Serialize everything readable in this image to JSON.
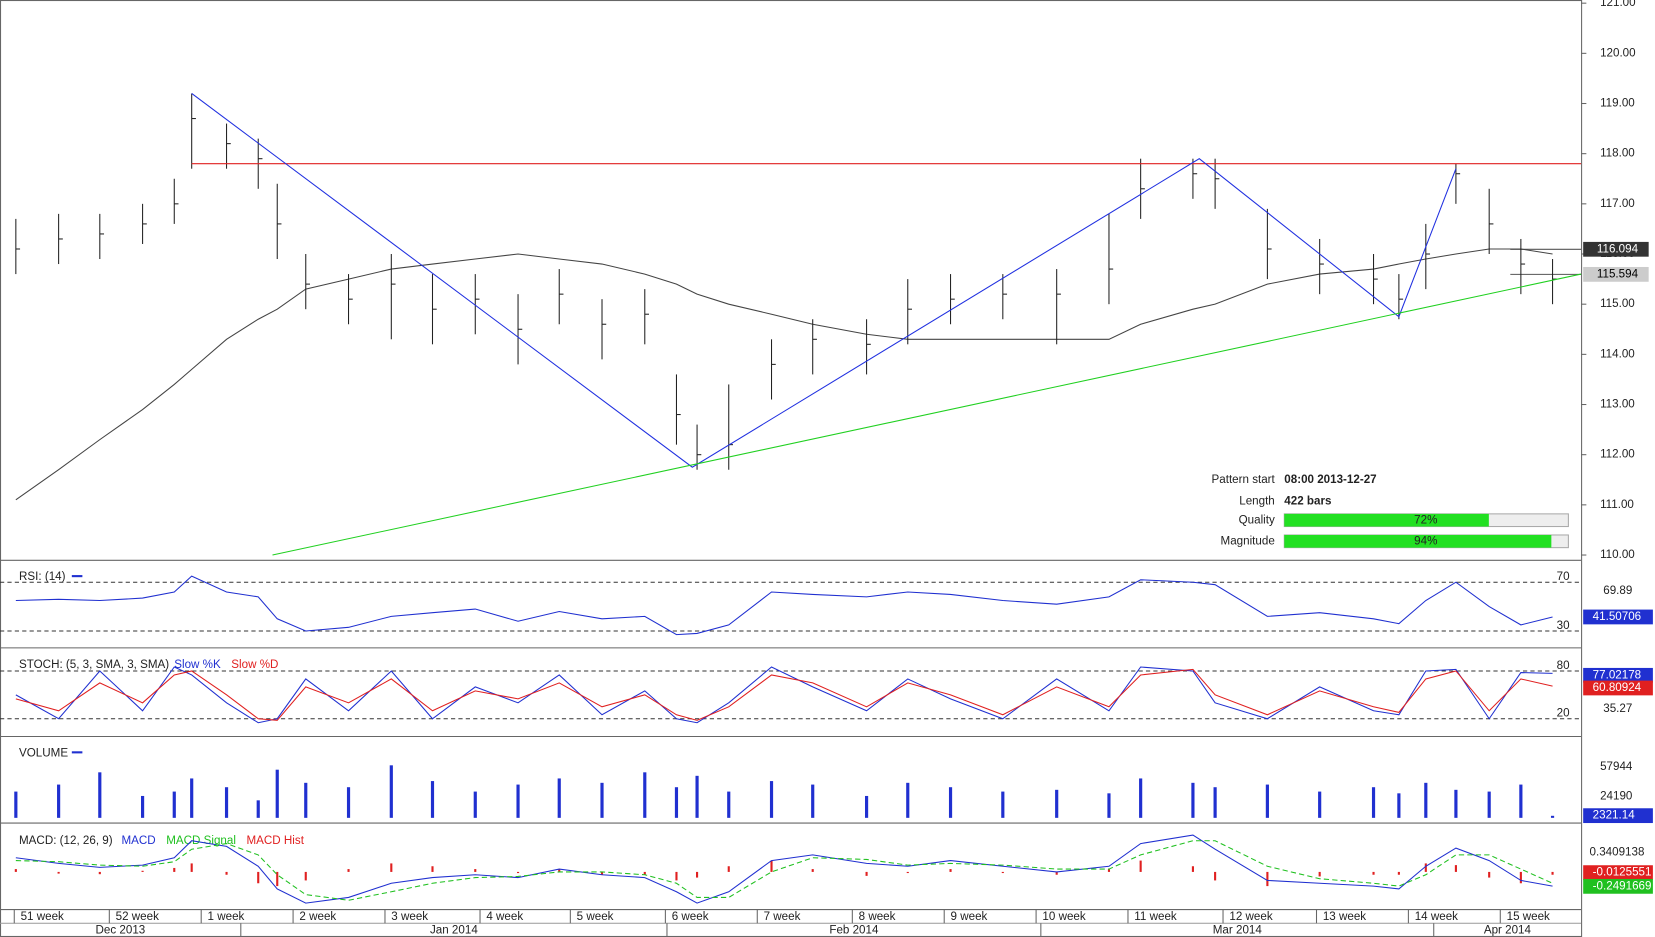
{
  "chart_data": {
    "type": "ohlc",
    "xlim": [
      0,
      99.8
    ],
    "x": [
      1,
      3.7,
      6.3,
      9,
      11,
      12.1,
      14.3,
      16.3,
      17.5,
      19.3,
      22,
      24.7,
      27.3,
      30,
      32.7,
      35.3,
      38,
      40.7,
      42.7,
      44,
      46,
      48.7,
      51.3,
      54.7,
      57.3,
      60,
      63.3,
      66.7,
      70,
      72,
      75.3,
      76.7,
      80,
      83.3,
      86.7,
      88.3,
      90,
      91.9,
      94,
      96,
      98
    ],
    "close": [
      116.1,
      116.3,
      116.4,
      116.6,
      117.0,
      118.7,
      118.2,
      117.9,
      116.6,
      115.4,
      115.1,
      115.4,
      114.9,
      115.1,
      114.5,
      115.2,
      114.6,
      114.8,
      112.8,
      112.0,
      112.2,
      113.8,
      114.3,
      114.2,
      114.9,
      115.1,
      115.2,
      115.2,
      115.7,
      117.3,
      117.6,
      117.5,
      116.1,
      115.8,
      115.5,
      115.1,
      116.0,
      117.6,
      116.6,
      115.8,
      115.5
    ],
    "high": [
      116.7,
      116.8,
      116.8,
      117.0,
      117.5,
      119.2,
      118.6,
      118.3,
      117.4,
      116.0,
      115.6,
      116.0,
      115.6,
      115.6,
      115.2,
      115.7,
      115.1,
      115.3,
      113.6,
      112.6,
      113.4,
      114.3,
      114.7,
      114.7,
      115.5,
      115.6,
      115.6,
      115.7,
      116.8,
      117.9,
      117.9,
      117.9,
      116.9,
      116.3,
      116.0,
      115.6,
      116.6,
      117.8,
      117.3,
      116.3,
      115.9
    ],
    "low": [
      115.6,
      115.8,
      115.9,
      116.2,
      116.6,
      117.7,
      117.7,
      117.3,
      115.9,
      114.9,
      114.6,
      114.3,
      114.2,
      114.4,
      113.8,
      114.6,
      113.9,
      114.2,
      112.2,
      111.7,
      111.7,
      113.1,
      113.6,
      113.6,
      114.2,
      114.6,
      114.7,
      114.2,
      115.0,
      116.7,
      117.1,
      116.9,
      115.5,
      115.2,
      115.0,
      114.7,
      115.3,
      117.0,
      116.0,
      115.2,
      115.0
    ],
    "color": "#222",
    "ma": {
      "color": "#444",
      "values": [
        111.1,
        111.7,
        112.3,
        112.9,
        113.4,
        113.7,
        114.3,
        114.7,
        114.9,
        115.3,
        115.5,
        115.7,
        115.8,
        115.9,
        116.0,
        115.9,
        115.8,
        115.6,
        115.4,
        115.2,
        115.0,
        114.8,
        114.6,
        114.4,
        114.3,
        114.3,
        114.3,
        114.3,
        114.3,
        114.6,
        114.9,
        115.0,
        115.4,
        115.6,
        115.7,
        115.8,
        115.9,
        116.0,
        116.1,
        116.1,
        116.0
      ]
    },
    "ylim": [
      110,
      121
    ],
    "yticks": [
      {
        "value": 110,
        "label": "110.00"
      },
      {
        "value": 111,
        "label": "111.00"
      },
      {
        "value": 112,
        "label": "112.00"
      },
      {
        "value": 113,
        "label": "113.00"
      },
      {
        "value": 114,
        "label": "114.00"
      },
      {
        "value": 115,
        "label": "115.00"
      },
      {
        "value": 116,
        "label": "116.00"
      },
      {
        "value": 117,
        "label": "117.00"
      },
      {
        "value": 118,
        "label": "118.00"
      },
      {
        "value": 119,
        "label": "119.00"
      },
      {
        "value": 120,
        "label": "120.00"
      },
      {
        "value": 121,
        "label": "121.00"
      }
    ],
    "price_marks": [
      {
        "value": 116.094,
        "color": "#333"
      },
      {
        "value": 115.594,
        "color": "#ccc"
      }
    ],
    "resistance": {
      "color": "#e02020",
      "value": 117.8,
      "x": [
        12.1,
        99.8
      ]
    },
    "zigzag": {
      "color": "#2030e0",
      "x": [
        12.1,
        43.7,
        75.7,
        88.3,
        91.9
      ],
      "values": [
        119.2,
        111.75,
        117.9,
        114.75,
        117.7
      ]
    },
    "support": {
      "color": "#20d020",
      "x": [
        17.2,
        99.8
      ],
      "values": [
        110,
        115.6
      ]
    },
    "pattern": {
      "start_label": "Pattern start",
      "start": "08:00 2013-12-27",
      "length_label": "Length",
      "length": "422 bars",
      "quality_label": "Quality",
      "quality": 72,
      "quality_text": "72%",
      "magnitude_label": "Magnitude",
      "magnitude": 94,
      "magnitude_text": "94%"
    },
    "xticks": [
      {
        "value": 0.9,
        "label": "51 week"
      },
      {
        "value": 6.9,
        "label": "52 week"
      },
      {
        "value": 12.7,
        "label": "1 week"
      },
      {
        "value": 18.5,
        "label": "2 week"
      },
      {
        "value": 24.3,
        "label": "3 week"
      },
      {
        "value": 30.3,
        "label": "4 week"
      },
      {
        "value": 36.0,
        "label": "5 week"
      },
      {
        "value": 42.0,
        "label": "6 week"
      },
      {
        "value": 47.8,
        "label": "7 week"
      },
      {
        "value": 53.8,
        "label": "8 week"
      },
      {
        "value": 59.6,
        "label": "9 week"
      },
      {
        "value": 65.4,
        "label": "10 week"
      },
      {
        "value": 71.2,
        "label": "11 week"
      },
      {
        "value": 77.2,
        "label": "12 week"
      },
      {
        "value": 83.1,
        "label": "13 week"
      },
      {
        "value": 88.9,
        "label": "14 week"
      },
      {
        "value": 94.7,
        "label": "15 week"
      }
    ],
    "months": [
      {
        "value": 15.2,
        "label": "Dec 2013"
      },
      {
        "value": 42.1,
        "label": "Jan 2014"
      },
      {
        "value": 65.7,
        "label": "Feb 2014"
      },
      {
        "value": 90.5,
        "label": "Mar 2014"
      },
      {
        "value": 99.8,
        "label": "Apr 2014"
      }
    ],
    "rsi": {
      "title": "RSI: (14)",
      "ylim": [
        17,
        88
      ],
      "yticks": [
        70,
        30
      ],
      "side_label": 69.89,
      "color": "#2030d0",
      "last": "41.50706",
      "values": [
        55,
        56,
        55,
        57,
        62,
        75,
        62,
        58,
        40,
        30,
        33,
        42,
        45,
        48,
        38,
        46,
        40,
        42,
        27,
        28,
        35,
        62,
        60,
        58,
        62,
        60,
        55,
        52,
        58,
        72,
        70,
        68,
        42,
        45,
        40,
        36,
        55,
        70,
        50,
        35,
        41.5
      ]
    },
    "stoch": {
      "title": "STOCH: (5, 3, SMA, 3, SMA)",
      "ylim": [
        -1,
        109
      ],
      "yticks": [
        80,
        20
      ],
      "side_label": 35.27,
      "series": [
        {
          "name": "Slow %K",
          "color": "#2030d0",
          "last": "77.02178",
          "values": [
            50,
            20,
            80,
            30,
            85,
            75,
            40,
            15,
            20,
            70,
            30,
            80,
            20,
            60,
            40,
            75,
            25,
            55,
            20,
            15,
            40,
            85,
            60,
            30,
            70,
            45,
            20,
            70,
            30,
            85,
            80,
            40,
            20,
            60,
            30,
            25,
            80,
            82,
            20,
            78,
            77
          ]
        },
        {
          "name": "Slow %D",
          "color": "#e02020",
          "last": "60.80924",
          "values": [
            45,
            30,
            65,
            40,
            75,
            80,
            50,
            20,
            18,
            60,
            40,
            70,
            30,
            55,
            45,
            65,
            35,
            50,
            25,
            18,
            35,
            75,
            65,
            35,
            65,
            50,
            25,
            60,
            35,
            75,
            82,
            50,
            25,
            55,
            35,
            28,
            70,
            80,
            30,
            70,
            61
          ]
        }
      ]
    },
    "volume": {
      "title": "VOLUME",
      "ylim": [
        -4730,
        92900
      ],
      "yticks": [
        57944,
        24190
      ],
      "color": "#2030d0",
      "last": "2321.14",
      "values": [
        30000,
        38000,
        52000,
        25000,
        30000,
        45000,
        35000,
        20000,
        55000,
        40000,
        35000,
        60000,
        42000,
        30000,
        38000,
        45000,
        40000,
        52000,
        35000,
        48000,
        30000,
        42000,
        38000,
        25000,
        40000,
        35000,
        30000,
        32000,
        28000,
        45000,
        40000,
        35000,
        38000,
        30000,
        35000,
        28000,
        40000,
        32000,
        30000,
        38000,
        2321.14
      ]
    },
    "macd": {
      "title": "MACD: (12, 26, 9)",
      "ylim": [
        -0.664,
        0.862
      ],
      "yticks": [
        0.3409138
      ],
      "series": [
        {
          "name": "MACD",
          "color": "#2030d0",
          "last": "-0.2491669",
          "values": [
            0.25,
            0.15,
            0.08,
            0.12,
            0.25,
            0.55,
            0.45,
            0.1,
            -0.3,
            -0.55,
            -0.45,
            -0.2,
            -0.1,
            -0.05,
            -0.1,
            0.05,
            -0.05,
            -0.1,
            -0.35,
            -0.55,
            -0.35,
            0.2,
            0.3,
            0.15,
            0.1,
            0.2,
            0.1,
            0.0,
            0.1,
            0.5,
            0.65,
            0.4,
            -0.15,
            -0.2,
            -0.25,
            -0.3,
            0.1,
            0.42,
            0.2,
            -0.15,
            -0.25
          ]
        },
        {
          "name": "MACD Signal",
          "color": "#20c020",
          "last": null,
          "values": [
            0.2,
            0.18,
            0.12,
            0.1,
            0.18,
            0.4,
            0.5,
            0.3,
            -0.05,
            -0.4,
            -0.5,
            -0.35,
            -0.2,
            -0.1,
            -0.08,
            0.0,
            0.0,
            -0.05,
            -0.2,
            -0.45,
            -0.45,
            0.0,
            0.25,
            0.22,
            0.12,
            0.15,
            0.12,
            0.05,
            0.05,
            0.3,
            0.55,
            0.55,
            0.1,
            -0.12,
            -0.2,
            -0.25,
            -0.05,
            0.3,
            0.3,
            0.05,
            -0.2
          ]
        },
        {
          "name": "MACD Hist",
          "color": "#e02020",
          "last": "-0.0125551",
          "values": [
            0.05,
            -0.03,
            -0.04,
            0.02,
            0.07,
            0.15,
            -0.05,
            -0.2,
            -0.25,
            -0.15,
            0.05,
            0.15,
            0.1,
            0.05,
            -0.02,
            0.05,
            -0.05,
            -0.05,
            -0.15,
            -0.1,
            0.1,
            0.2,
            0.05,
            -0.07,
            -0.02,
            0.05,
            -0.02,
            -0.05,
            0.05,
            0.2,
            0.1,
            -0.15,
            -0.25,
            -0.08,
            -0.05,
            -0.05,
            0.15,
            0.12,
            -0.1,
            -0.2,
            -0.05
          ]
        }
      ]
    }
  }
}
